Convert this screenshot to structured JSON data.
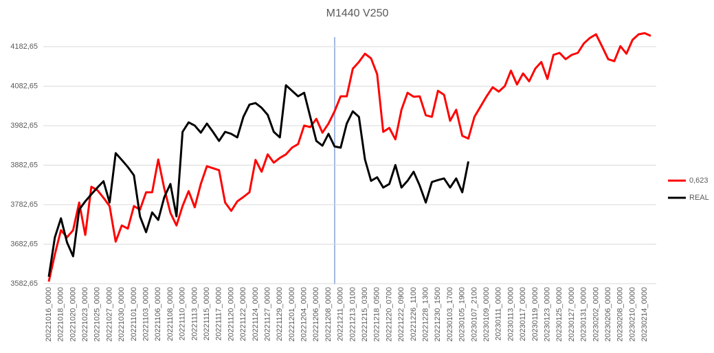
{
  "chart_data": {
    "type": "line",
    "title": "M1440 V250",
    "categories": [
      "20221016_0000",
      null,
      "20221018_0000",
      null,
      "20221020_0000",
      null,
      "20221023_0000",
      null,
      "20221025_0000",
      null,
      "20221027_0000",
      null,
      "20221030_0000",
      null,
      "20221101_0000",
      null,
      "20221103_0000",
      null,
      "20221106_0000",
      null,
      "20221108_0000",
      null,
      "20221110_0000",
      null,
      "20221113_0000",
      null,
      "20221115_0000",
      null,
      "20221117_0000",
      null,
      "20221120_0000",
      null,
      "20221122_0000",
      null,
      "20221124_0000",
      null,
      "20221127_0000",
      null,
      "20221129_0000",
      null,
      "20221201_0000",
      null,
      "20221204_0000",
      null,
      "20221206_0000",
      null,
      "20221208_0000",
      null,
      "20221211_0000",
      null,
      "20221213_0100",
      null,
      "20221215_0300",
      null,
      "20221218_0500",
      null,
      "20221220_0700",
      null,
      "20221222_0900",
      null,
      "20221226_1100",
      null,
      "20221228_1300",
      null,
      "20221230_1500",
      null,
      "20230103_1700",
      null,
      "20230105_1900",
      null,
      "20230107_2100",
      null,
      "20230109_0000",
      null,
      "20230111_0000",
      null,
      "20230113_0000",
      null,
      "20230117_0000",
      null,
      "20230119_0000",
      null,
      "20230123_0000",
      null,
      "20230125_0000",
      null,
      "20230127_0000",
      null,
      "20230131_0000",
      null,
      "20230202_0000",
      null,
      "20230206_0000",
      null,
      "20230208_0000",
      null,
      "20230210_0000",
      null,
      "20230214_0000",
      null
    ],
    "series": [
      {
        "name": "0,623",
        "color": "#ff0000",
        "values": [
          3588,
          3657,
          3718,
          3700,
          3718,
          3788,
          3706,
          3828,
          3819,
          3800,
          3779,
          3689,
          3730,
          3722,
          3779,
          3770,
          3814,
          3814,
          3897,
          3823,
          3762,
          3730,
          3779,
          3817,
          3776,
          3835,
          3880,
          3875,
          3870,
          3788,
          3767,
          3791,
          3802,
          3814,
          3896,
          3866,
          3910,
          3889,
          3901,
          3910,
          3927,
          3936,
          3983,
          3979,
          4000,
          3965,
          3988,
          4019,
          4057,
          4057,
          4127,
          4144,
          4165,
          4153,
          4113,
          3967,
          3977,
          3948,
          4023,
          4066,
          4056,
          4057,
          4009,
          4005,
          4071,
          4061,
          3995,
          4023,
          3957,
          3950,
          4005,
          4031,
          4057,
          4080,
          4069,
          4083,
          4122,
          4087,
          4115,
          4095,
          4127,
          4144,
          4101,
          4162,
          4167,
          4151,
          4162,
          4167,
          4191,
          4205,
          4214,
          4183,
          4151,
          4146,
          4184,
          4165,
          4200,
          4214,
          4217,
          4210
        ]
      },
      {
        "name": "REAL",
        "color": "#000000",
        "values": [
          3600,
          3700,
          3748,
          3687,
          3652,
          3770,
          3791,
          3809,
          3826,
          3842,
          3788,
          3913,
          3896,
          3878,
          3857,
          3753,
          3713,
          3763,
          3744,
          3802,
          3835,
          3753,
          3967,
          3991,
          3983,
          3965,
          3988,
          3967,
          3944,
          3967,
          3962,
          3953,
          4005,
          4036,
          4040,
          4028,
          4010,
          3967,
          3953,
          4085,
          4071,
          4057,
          4066,
          4005,
          3944,
          3932,
          3962,
          3930,
          3927,
          3988,
          4019,
          4005,
          3897,
          3843,
          3852,
          3826,
          3835,
          3883,
          3826,
          3843,
          3866,
          3831,
          3788,
          3840,
          3845,
          3849,
          3826,
          3849,
          3814,
          3892,
          null,
          null,
          null,
          null,
          null,
          null,
          null,
          null,
          null,
          null,
          null,
          null,
          null,
          null,
          null,
          null,
          null,
          null,
          null,
          null,
          null,
          null,
          null,
          null,
          null,
          null,
          null,
          null,
          null,
          null
        ]
      }
    ],
    "ylim": [
      3582.65,
      4212.65
    ],
    "yticks": [
      {
        "value": 3582.65,
        "label": "3582,65"
      },
      {
        "value": 3682.65,
        "label": "3682,65"
      },
      {
        "value": 3782.65,
        "label": "3782,65"
      },
      {
        "value": 3882.65,
        "label": "3882,65"
      },
      {
        "value": 3982.65,
        "label": "3982,65"
      },
      {
        "value": 4082.65,
        "label": "4082,65"
      },
      {
        "value": 4182.65,
        "label": "4182,65"
      }
    ],
    "grid": true,
    "legend": "right"
  }
}
